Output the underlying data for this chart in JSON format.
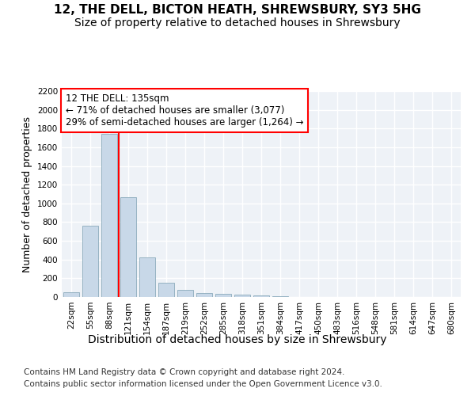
{
  "title_line1": "12, THE DELL, BICTON HEATH, SHREWSBURY, SY3 5HG",
  "title_line2": "Size of property relative to detached houses in Shrewsbury",
  "xlabel": "Distribution of detached houses by size in Shrewsbury",
  "ylabel": "Number of detached properties",
  "bar_values": [
    55,
    760,
    1740,
    1070,
    420,
    155,
    80,
    40,
    35,
    25,
    15,
    10,
    0,
    0,
    0,
    0,
    0,
    0,
    0,
    0,
    0
  ],
  "categories": [
    "22sqm",
    "55sqm",
    "88sqm",
    "121sqm",
    "154sqm",
    "187sqm",
    "219sqm",
    "252sqm",
    "285sqm",
    "318sqm",
    "351sqm",
    "384sqm",
    "417sqm",
    "450sqm",
    "483sqm",
    "516sqm",
    "548sqm",
    "581sqm",
    "614sqm",
    "647sqm",
    "680sqm"
  ],
  "bar_color": "#c8d8e8",
  "bar_edge_color": "#8aaabb",
  "annotation_text": "12 THE DELL: 135sqm\n← 71% of detached houses are smaller (3,077)\n29% of semi-detached houses are larger (1,264) →",
  "annotation_box_color": "white",
  "annotation_box_edge_color": "red",
  "vline_color": "red",
  "vline_x": 2.5,
  "ylim": [
    0,
    2200
  ],
  "yticks": [
    0,
    200,
    400,
    600,
    800,
    1000,
    1200,
    1400,
    1600,
    1800,
    2000,
    2200
  ],
  "footer_line1": "Contains HM Land Registry data © Crown copyright and database right 2024.",
  "footer_line2": "Contains public sector information licensed under the Open Government Licence v3.0.",
  "bg_color": "#ffffff",
  "plot_bg_color": "#eef2f7",
  "grid_color": "#ffffff",
  "title_fontsize": 11,
  "subtitle_fontsize": 10,
  "tick_fontsize": 7.5,
  "ylabel_fontsize": 9,
  "xlabel_fontsize": 10,
  "footer_fontsize": 7.5,
  "annot_fontsize": 8.5
}
